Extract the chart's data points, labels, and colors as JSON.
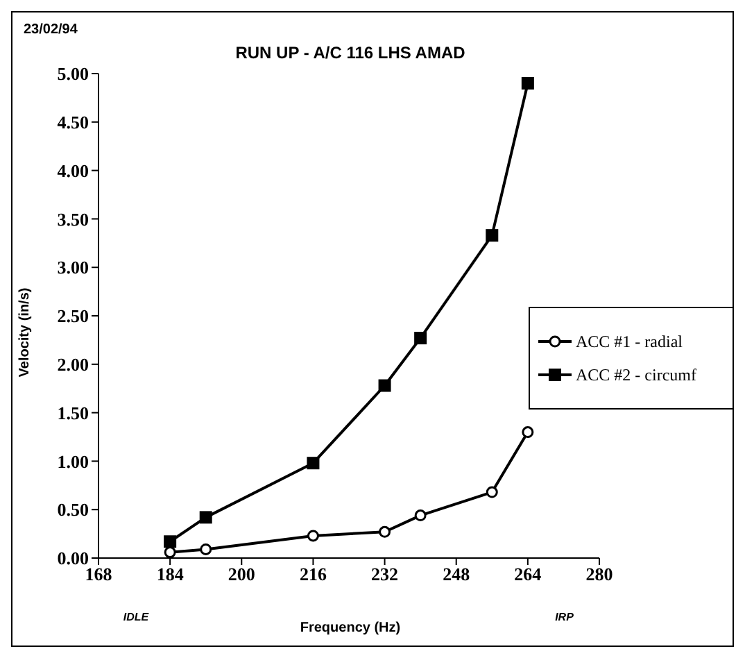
{
  "chart_data": {
    "type": "line",
    "title": "RUN UP - A/C 116 LHS AMAD",
    "xlabel": "Frequency (Hz)",
    "ylabel": "Velocity (in/s)",
    "annotations": [
      "23/02/94",
      "IDLE",
      "IRP"
    ],
    "x": [
      184,
      192,
      216,
      232,
      240,
      256,
      264
    ],
    "series": [
      {
        "name": "ACC #1 - radial",
        "color": "#000000",
        "marker": "circle",
        "values": [
          0.06,
          0.09,
          0.23,
          0.27,
          0.44,
          0.68,
          1.3
        ]
      },
      {
        "name": "ACC #2 - circumf",
        "color": "#000000",
        "marker": "square",
        "values": [
          0.17,
          0.42,
          0.98,
          1.78,
          2.27,
          3.33,
          4.9
        ]
      }
    ],
    "xlim": [
      168,
      280
    ],
    "xticks": [
      168,
      184,
      200,
      216,
      232,
      248,
      264,
      280
    ],
    "ylim": [
      0,
      5
    ],
    "yticks": [
      {
        "value": 0,
        "label": "0.00"
      },
      {
        "value": 0.5,
        "label": "0.50"
      },
      {
        "value": 1,
        "label": "1.00"
      },
      {
        "value": 1.5,
        "label": "1.50"
      },
      {
        "value": 2,
        "label": "2.00"
      },
      {
        "value": 2.5,
        "label": "2.50"
      },
      {
        "value": 3,
        "label": "3.00"
      },
      {
        "value": 3.5,
        "label": "3.50"
      },
      {
        "value": 4,
        "label": "4.00"
      },
      {
        "value": 4.5,
        "label": "4.50"
      },
      {
        "value": 5,
        "label": "5.00"
      }
    ],
    "grid": false,
    "legend": "right",
    "line_style": "solid"
  }
}
